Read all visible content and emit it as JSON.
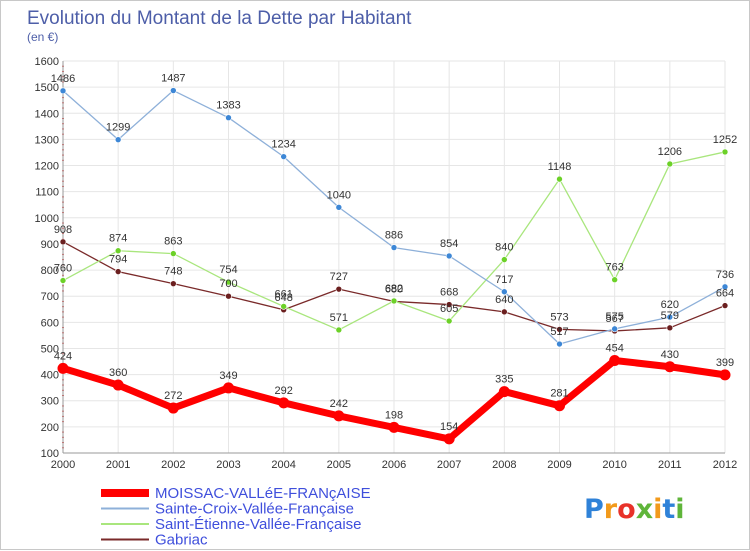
{
  "chart_data": {
    "type": "line",
    "title": "Evolution du Montant de la Dette par Habitant",
    "subtitle": "(en €)",
    "x": [
      2000,
      2001,
      2002,
      2003,
      2004,
      2005,
      2006,
      2007,
      2008,
      2009,
      2010,
      2011,
      2012
    ],
    "ylim": [
      100,
      1600
    ],
    "yticks": [
      100,
      200,
      300,
      400,
      500,
      600,
      700,
      800,
      900,
      1000,
      1100,
      1200,
      1300,
      1400,
      1500,
      1600
    ],
    "grid": true,
    "legend_position": "bottom-left",
    "series": [
      {
        "name": "MOISSAC-VALLéE-FRANçAISE",
        "color": "#ff0000",
        "marker": "#ff0000",
        "values": [
          424,
          360,
          272,
          349,
          292,
          242,
          198,
          154,
          335,
          281,
          454,
          430,
          399
        ]
      },
      {
        "name": "Sainte-Croix-Vallée-Française",
        "color": "#8eb0d9",
        "marker": "#3d87d6",
        "values": [
          1486,
          1299,
          1487,
          1383,
          1234,
          1040,
          886,
          854,
          717,
          517,
          575,
          620,
          736
        ]
      },
      {
        "name": "Saint-Étienne-Vallée-Française",
        "color": "#a9e67d",
        "marker": "#6cd128",
        "values": [
          760,
          874,
          863,
          754,
          661,
          571,
          682,
          605,
          840,
          1148,
          763,
          1206,
          1252
        ]
      },
      {
        "name": "Gabriac",
        "color": "#7a2a2a",
        "marker": "#6b1f1f",
        "values": [
          908,
          794,
          748,
          700,
          648,
          727,
          680,
          668,
          640,
          573,
          567,
          579,
          664
        ]
      }
    ]
  },
  "branding": {
    "logo_text": "Proxiti"
  }
}
